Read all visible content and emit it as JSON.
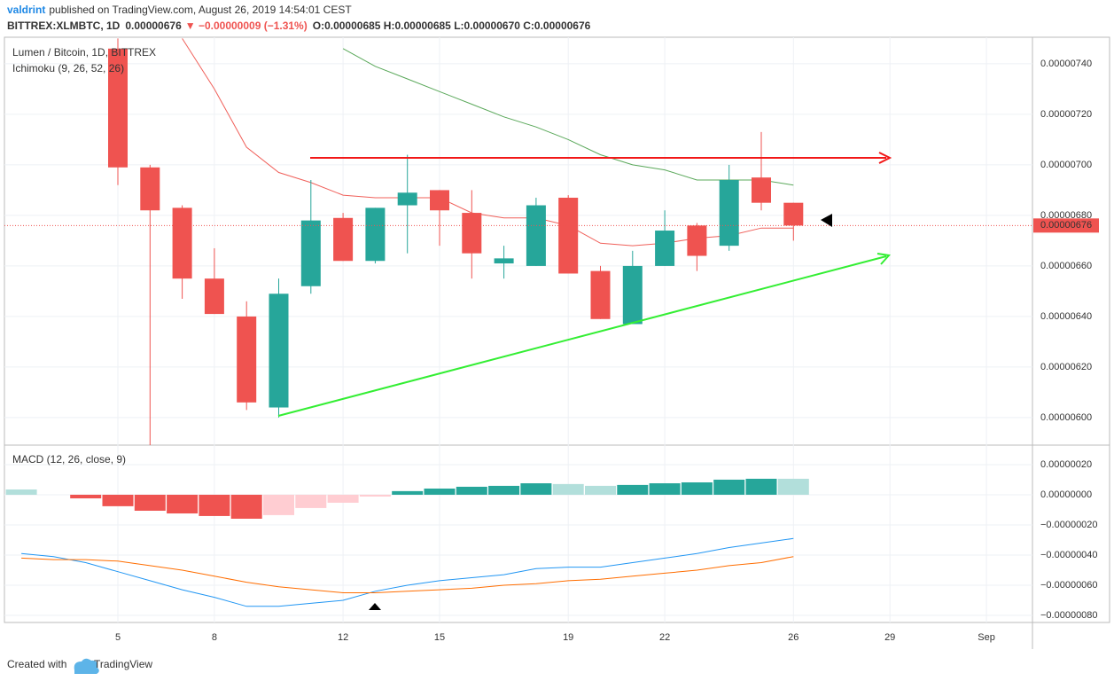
{
  "header": {
    "author": "valdrint",
    "published": "published on TradingView.com, August 26, 2019 14:54:01 CEST",
    "symbol": "BITTREX:XLMBTC, 1D",
    "last": "0.00000676",
    "change": "▼ −0.00000009 (−1.31%)",
    "ohlc": "O:0.00000685 H:0.00000685 L:0.00000670 C:0.00000676"
  },
  "chart_data": [
    {
      "type": "candlestick",
      "title": "Lumen / Bitcoin, 1D, BITTREX",
      "subtitle": "Ichimoku (9, 26, 52, 26)",
      "categories": [
        null,
        null,
        null,
        "5",
        null,
        null,
        "8",
        null,
        null,
        null,
        "12",
        null,
        null,
        "15",
        null,
        null,
        null,
        "19",
        null,
        null,
        "22",
        null,
        null,
        null,
        "26",
        null,
        null,
        "29",
        null,
        null,
        "Sep",
        null
      ],
      "open": [
        null,
        null,
        null,
        7.46e-06,
        6.99e-06,
        6.83e-06,
        6.55e-06,
        6.4e-06,
        6.04e-06,
        6.52e-06,
        6.79e-06,
        6.62e-06,
        6.84e-06,
        6.9e-06,
        6.81e-06,
        6.61e-06,
        6.6e-06,
        6.87e-06,
        6.58e-06,
        6.37e-06,
        6.6e-06,
        6.76e-06,
        6.68e-06,
        6.95e-06,
        6.85e-06,
        null,
        null,
        null,
        null,
        null,
        null,
        null
      ],
      "high": [
        null,
        null,
        null,
        7.5e-06,
        7e-06,
        6.84e-06,
        6.67e-06,
        6.46e-06,
        6.55e-06,
        6.94e-06,
        6.81e-06,
        6.83e-06,
        7.04e-06,
        6.9e-06,
        6.9e-06,
        6.68e-06,
        6.87e-06,
        6.88e-06,
        6.6e-06,
        6.66e-06,
        6.82e-06,
        6.77e-06,
        7e-06,
        7.13e-06,
        6.85e-06,
        null,
        null,
        null,
        null,
        null,
        null,
        null
      ],
      "low": [
        null,
        null,
        null,
        6.92e-06,
        5.85e-06,
        6.47e-06,
        6.41e-06,
        6.03e-06,
        6e-06,
        6.49e-06,
        6.62e-06,
        6.61e-06,
        6.65e-06,
        6.68e-06,
        6.55e-06,
        6.55e-06,
        6.6e-06,
        6.57e-06,
        6.39e-06,
        6.37e-06,
        6.6e-06,
        6.58e-06,
        6.66e-06,
        6.82e-06,
        6.7e-06,
        null,
        null,
        null,
        null,
        null,
        null,
        null
      ],
      "close": [
        null,
        null,
        null,
        6.99e-06,
        6.82e-06,
        6.55e-06,
        6.41e-06,
        6.06e-06,
        6.49e-06,
        6.78e-06,
        6.62e-06,
        6.83e-06,
        6.89e-06,
        6.82e-06,
        6.65e-06,
        6.63e-06,
        6.84e-06,
        6.57e-06,
        6.39e-06,
        6.6e-06,
        6.74e-06,
        6.64e-06,
        6.94e-06,
        6.85e-06,
        6.76e-06,
        null,
        null,
        null,
        null,
        null,
        null,
        null
      ],
      "up_color": "#26a69a",
      "down_color": "#ef5350",
      "overlays": [
        {
          "color": "#f0605a",
          "values": [
            null,
            null,
            null,
            null,
            null,
            7.5e-06,
            7.3e-06,
            7.07e-06,
            6.97e-06,
            6.93e-06,
            6.88e-06,
            6.87e-06,
            6.87e-06,
            6.87e-06,
            6.81e-06,
            6.79e-06,
            6.79e-06,
            6.76e-06,
            6.69e-06,
            6.68e-06,
            6.69e-06,
            6.71e-06,
            6.72e-06,
            6.75e-06,
            6.75e-06,
            null,
            null,
            null,
            null,
            null,
            null,
            null
          ]
        },
        {
          "color": "#5aa85a",
          "values": [
            null,
            null,
            null,
            null,
            null,
            null,
            null,
            null,
            null,
            null,
            7.46e-06,
            7.39e-06,
            7.34e-06,
            7.29e-06,
            7.24e-06,
            7.19e-06,
            7.15e-06,
            7.1e-06,
            7.04e-06,
            7e-06,
            6.98e-06,
            6.94e-06,
            6.94e-06,
            6.94e-06,
            6.92e-06,
            null,
            null,
            null,
            null,
            null,
            null,
            null
          ]
        }
      ],
      "last_price": {
        "value": 6.76e-06,
        "label": "0.00000676",
        "color": "#ef5350"
      },
      "ylim": [
        5.891e-06,
        7.505e-06
      ],
      "yticks": [
        {
          "value": 6e-06,
          "label": "0.00000600"
        },
        {
          "value": 6.2e-06,
          "label": "0.00000620"
        },
        {
          "value": 6.4e-06,
          "label": "0.00000640"
        },
        {
          "value": 6.6e-06,
          "label": "0.00000660"
        },
        {
          "value": 6.8e-06,
          "label": "0.00000680"
        },
        {
          "value": 7e-06,
          "label": "0.00000700"
        },
        {
          "value": 7.2e-06,
          "label": "0.00000720"
        },
        {
          "value": 7.4e-06,
          "label": "0.00000740"
        }
      ],
      "grid": true
    },
    {
      "type": "macd",
      "title": "MACD (12, 26, close, 9)",
      "histogram": [
        3.5e-08,
        null,
        -2.4e-08,
        -7.6e-08,
        -1.06e-07,
        -1.24e-07,
        -1.41e-07,
        -1.59e-07,
        -1.35e-07,
        -8.8e-08,
        -5.3e-08,
        -1.2e-08,
        2.4e-08,
        4.1e-08,
        5.3e-08,
        5.9e-08,
        7.6e-08,
        7.1e-08,
        5.9e-08,
        6.5e-08,
        7.6e-08,
        8.2e-08,
        1e-07,
        1.06e-07,
        1.06e-07,
        null,
        null,
        null,
        null,
        null,
        null,
        null
      ],
      "histogram_colors": [
        "#b2dfdb",
        null,
        "#ef5350",
        "#ef5350",
        "#ef5350",
        "#ef5350",
        "#ef5350",
        "#ef5350",
        "#ffcdd2",
        "#ffcdd2",
        "#ffcdd2",
        "#ffcdd2",
        "#26a69a",
        "#26a69a",
        "#26a69a",
        "#26a69a",
        "#26a69a",
        "#b2dfdb",
        "#b2dfdb",
        "#26a69a",
        "#26a69a",
        "#26a69a",
        "#26a69a",
        "#26a69a",
        "#b2dfdb",
        null,
        null,
        null,
        null,
        null,
        null,
        null
      ],
      "macd": {
        "color": "#2196f3",
        "values": [
          -3.9e-07,
          -4.1e-07,
          -4.5e-07,
          -5.1e-07,
          -5.7e-07,
          -6.3e-07,
          -6.8e-07,
          -7.4e-07,
          -7.4e-07,
          -7.2e-07,
          -7e-07,
          -6.4e-07,
          -6e-07,
          -5.7e-07,
          -5.5e-07,
          -5.3e-07,
          -4.9e-07,
          -4.8e-07,
          -4.8e-07,
          -4.5e-07,
          -4.2e-07,
          -3.9e-07,
          -3.5e-07,
          -3.2e-07,
          -2.9e-07,
          null,
          null,
          null,
          null,
          null,
          null,
          null
        ]
      },
      "signal": {
        "color": "#ff6d00",
        "values": [
          -4.2e-07,
          -4.3e-07,
          -4.3e-07,
          -4.4e-07,
          -4.7e-07,
          -5e-07,
          -5.4e-07,
          -5.8e-07,
          -6.1e-07,
          -6.3e-07,
          -6.5e-07,
          -6.5e-07,
          -6.4e-07,
          -6.3e-07,
          -6.2e-07,
          -6e-07,
          -5.9e-07,
          -5.7e-07,
          -5.6e-07,
          -5.4e-07,
          -5.2e-07,
          -5e-07,
          -4.7e-07,
          -4.5e-07,
          -4.1e-07,
          null,
          null,
          null,
          null,
          null,
          null,
          null
        ]
      },
      "ylim": [
        -8.47e-07,
        3.29e-07
      ],
      "yticks": [
        {
          "value": 2e-07,
          "label": "0.00000020"
        },
        {
          "value": 0,
          "label": "0.00000000"
        },
        {
          "value": -2e-07,
          "label": "−0.00000020"
        },
        {
          "value": -4e-07,
          "label": "−0.00000040"
        },
        {
          "value": -6e-07,
          "label": "−0.00000060"
        },
        {
          "value": -8e-07,
          "label": "−0.00000080"
        }
      ],
      "grid": true
    }
  ],
  "footer": {
    "created": "Created with",
    "brand": "TradingView"
  }
}
